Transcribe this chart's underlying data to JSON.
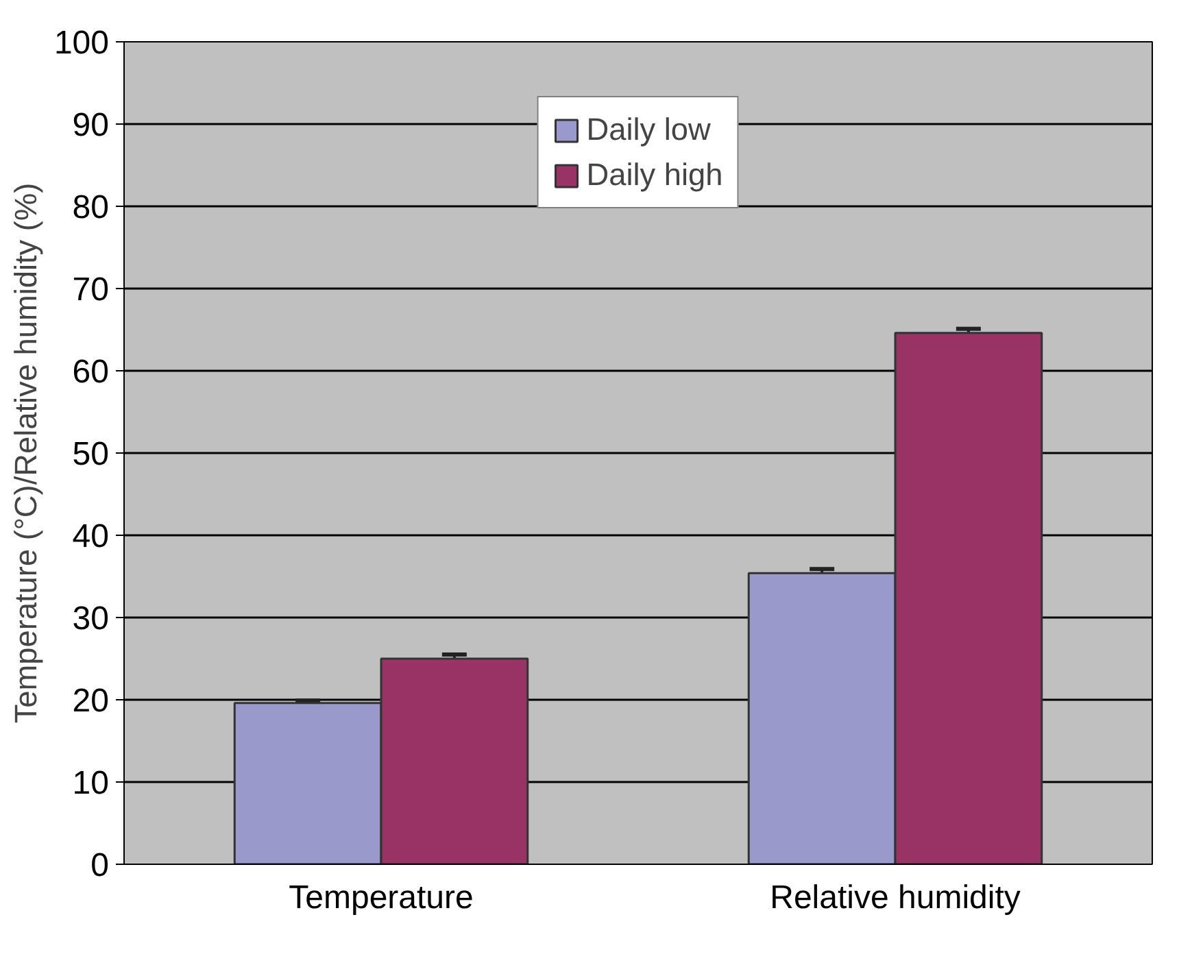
{
  "chart_data": {
    "type": "bar",
    "ylabel": "Temperature (°C)/Relative humidity (%)",
    "categories": [
      "Temperature",
      "Relative humidity"
    ],
    "series": [
      {
        "name": "Daily low",
        "color": "#9999cc",
        "values": [
          19.6,
          35.4
        ],
        "errors": [
          0.3,
          0.5
        ]
      },
      {
        "name": "Daily high",
        "color": "#993366",
        "values": [
          25.0,
          64.6
        ],
        "errors": [
          0.5,
          0.5
        ]
      }
    ],
    "ylim": [
      0,
      100
    ],
    "yticks": [
      0,
      10,
      20,
      30,
      40,
      50,
      60,
      70,
      80,
      90,
      100
    ],
    "grid": "y",
    "legend": "top"
  }
}
